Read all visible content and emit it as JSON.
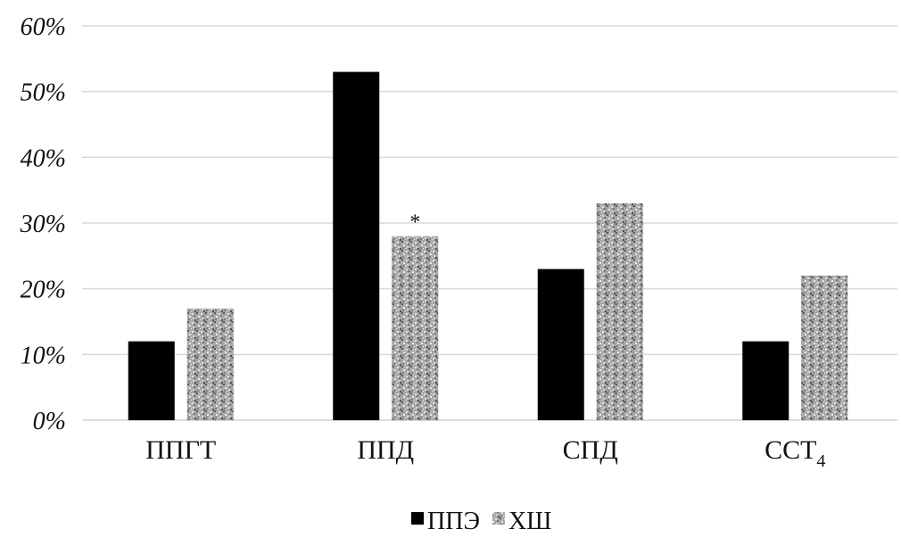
{
  "chart_data": {
    "type": "bar",
    "categories": [
      {
        "main": "ППГТ",
        "sub": ""
      },
      {
        "main": "ППД",
        "sub": ""
      },
      {
        "main": "СПД",
        "sub": ""
      },
      {
        "main": "ССТ",
        "sub": "4"
      }
    ],
    "series": [
      {
        "name": "ППЭ",
        "values": [
          12,
          53,
          23,
          12
        ],
        "color": "#000000",
        "pattern": "solid"
      },
      {
        "name": "ХШ",
        "values": [
          17,
          28,
          33,
          22
        ],
        "color": "#a6a6a6",
        "pattern": "speckled-gray"
      }
    ],
    "annotations": [
      {
        "category_index": 1,
        "series_index": 1,
        "text": "*"
      }
    ],
    "ylim": [
      0,
      60
    ],
    "yticks": [
      "0%",
      "10%",
      "20%",
      "30%",
      "40%",
      "50%",
      "60%"
    ],
    "ytick_values": [
      0,
      10,
      20,
      30,
      40,
      50,
      60
    ],
    "grid": true,
    "legend_position": "bottom-center",
    "title": "",
    "xlabel": "",
    "ylabel": ""
  }
}
